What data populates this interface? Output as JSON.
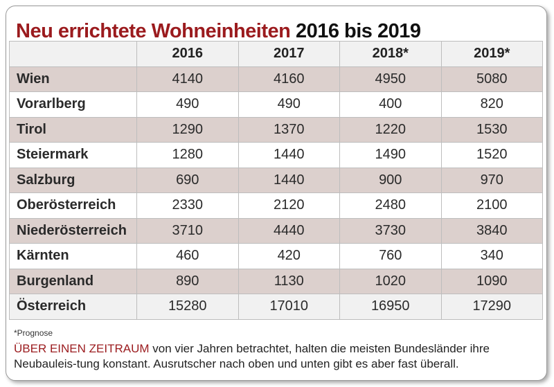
{
  "title": {
    "highlight": "Neu errichtete Wohneinheiten",
    "rest": "2016 bis 2019"
  },
  "chart_data": {
    "type": "table",
    "columns": [
      "2016",
      "2017",
      "2018*",
      "2019*"
    ],
    "rows": [
      {
        "label": "Wien",
        "values": [
          "4140",
          "4160",
          "4950",
          "5080"
        ]
      },
      {
        "label": "Vorarlberg",
        "values": [
          "490",
          "490",
          "400",
          "820"
        ]
      },
      {
        "label": "Tirol",
        "values": [
          "1290",
          "1370",
          "1220",
          "1530"
        ]
      },
      {
        "label": "Steiermark",
        "values": [
          "1280",
          "1440",
          "1490",
          "1520"
        ]
      },
      {
        "label": "Salzburg",
        "values": [
          "690",
          "1440",
          "900",
          "970"
        ]
      },
      {
        "label": "Oberösterreich",
        "values": [
          "2330",
          "2120",
          "2480",
          "2100"
        ]
      },
      {
        "label": "Niederösterreich",
        "values": [
          "3710",
          "4440",
          "3730",
          "3840"
        ]
      },
      {
        "label": "Kärnten",
        "values": [
          "460",
          "420",
          "760",
          "340"
        ]
      },
      {
        "label": "Burgenland",
        "values": [
          "890",
          "1130",
          "1020",
          "1090"
        ]
      },
      {
        "label": "Österreich",
        "values": [
          "15280",
          "17010",
          "16950",
          "17290"
        ]
      }
    ]
  },
  "footnote": "*Prognose",
  "paragraph": {
    "highlight": "ÜBER EINEN ZEITRAUM",
    "text": " von vier Jahren betrachtet, halten die meisten Bundesländer ihre Neubauleis-tung konstant. Ausrutscher nach oben und unten gibt es aber fast überall."
  },
  "colors": {
    "accent": "#9b1b1e",
    "stripe": "#dcd0cd",
    "header": "#f1f1f1"
  }
}
